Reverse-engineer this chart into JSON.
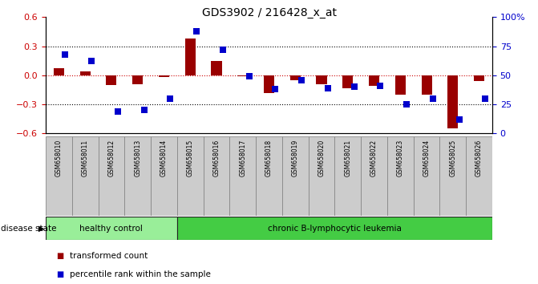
{
  "title": "GDS3902 / 216428_x_at",
  "samples": [
    "GSM658010",
    "GSM658011",
    "GSM658012",
    "GSM658013",
    "GSM658014",
    "GSM658015",
    "GSM658016",
    "GSM658017",
    "GSM658018",
    "GSM658019",
    "GSM658020",
    "GSM658021",
    "GSM658022",
    "GSM658023",
    "GSM658024",
    "GSM658025",
    "GSM658026"
  ],
  "transformed_count": [
    0.07,
    0.04,
    -0.1,
    -0.09,
    -0.02,
    0.38,
    0.15,
    -0.01,
    -0.18,
    -0.05,
    -0.09,
    -0.13,
    -0.11,
    -0.2,
    -0.2,
    -0.55,
    -0.06
  ],
  "percentile_display": [
    68,
    62,
    19,
    20,
    30,
    88,
    72,
    49,
    38,
    46,
    39,
    40,
    41,
    25,
    30,
    12,
    30
  ],
  "bar_color": "#990000",
  "dot_color": "#0000cc",
  "ylim": [
    -0.6,
    0.6
  ],
  "yticks_left": [
    -0.6,
    -0.3,
    0.0,
    0.3,
    0.6
  ],
  "yticks_right": [
    0,
    25,
    50,
    75,
    100
  ],
  "disease_groups": [
    {
      "label": "healthy control",
      "start": 0,
      "end": 5,
      "color": "#99ee99"
    },
    {
      "label": "chronic B-lymphocytic leukemia",
      "start": 5,
      "end": 17,
      "color": "#44cc44"
    }
  ],
  "legend_items": [
    {
      "label": "transformed count",
      "color": "#990000"
    },
    {
      "label": "percentile rank within the sample",
      "color": "#0000cc"
    }
  ],
  "disease_state_label": "disease state",
  "tick_label_color_left": "#cc0000",
  "tick_label_color_right": "#0000cc",
  "zero_line_color": "#cc0000",
  "xtick_bg_color": "#cccccc",
  "xtick_border_color": "#888888"
}
